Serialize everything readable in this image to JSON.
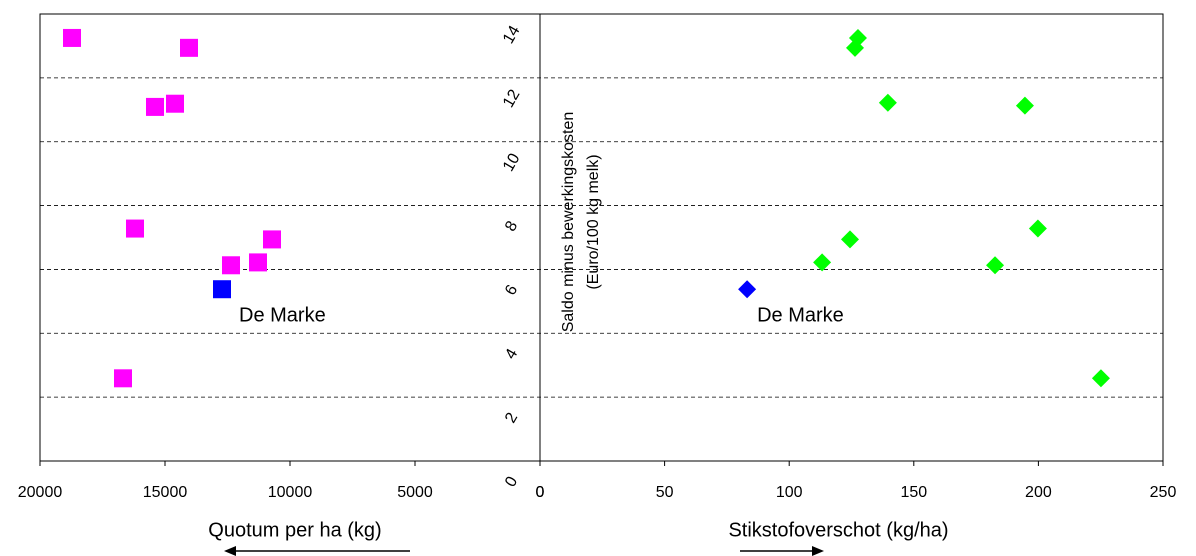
{
  "chart_data": [
    {
      "type": "scatter",
      "marker": "square",
      "xlabel": "Quotum per ha (kg)",
      "ylabel": [
        "Saldo minus bewerkingskosten",
        "(Euro/100 kg melk)"
      ],
      "xlim": [
        20000,
        0
      ],
      "xticks": [
        20000,
        15000,
        10000,
        5000,
        0
      ],
      "ylim": [
        0,
        14
      ],
      "yticks": [
        0,
        2,
        4,
        6,
        8,
        10,
        12,
        14
      ],
      "grid": true,
      "annotation": "De Marke",
      "series": [
        {
          "color": "#ff00ff",
          "x": [
            18720,
            14040,
            15400,
            14600,
            16200,
            10720,
            12360,
            11280,
            16680
          ],
          "values": [
            13.25,
            12.94,
            11.09,
            11.19,
            7.28,
            6.94,
            6.13,
            6.22,
            2.59
          ]
        },
        {
          "color": "#0000ff",
          "x": [
            12720
          ],
          "values": [
            5.38
          ]
        }
      ]
    },
    {
      "type": "scatter",
      "marker": "diamond",
      "xlabel": "Stikstofoverschot (kg/ha)",
      "xlim": [
        0,
        250
      ],
      "xticks": [
        0,
        50,
        100,
        150,
        200,
        250
      ],
      "ylim": [
        0,
        14
      ],
      "annotation": "De Marke",
      "series": [
        {
          "color": "#00ff00",
          "x": [
            127.6,
            126.4,
            139.6,
            194.6,
            199.8,
            124.4,
            113.2,
            182.6,
            225.1
          ],
          "values": [
            13.25,
            12.94,
            11.22,
            11.13,
            7.28,
            6.94,
            6.22,
            6.13,
            2.59
          ]
        },
        {
          "color": "#0000ff",
          "x": [
            83.1
          ],
          "values": [
            5.38
          ]
        }
      ]
    }
  ]
}
